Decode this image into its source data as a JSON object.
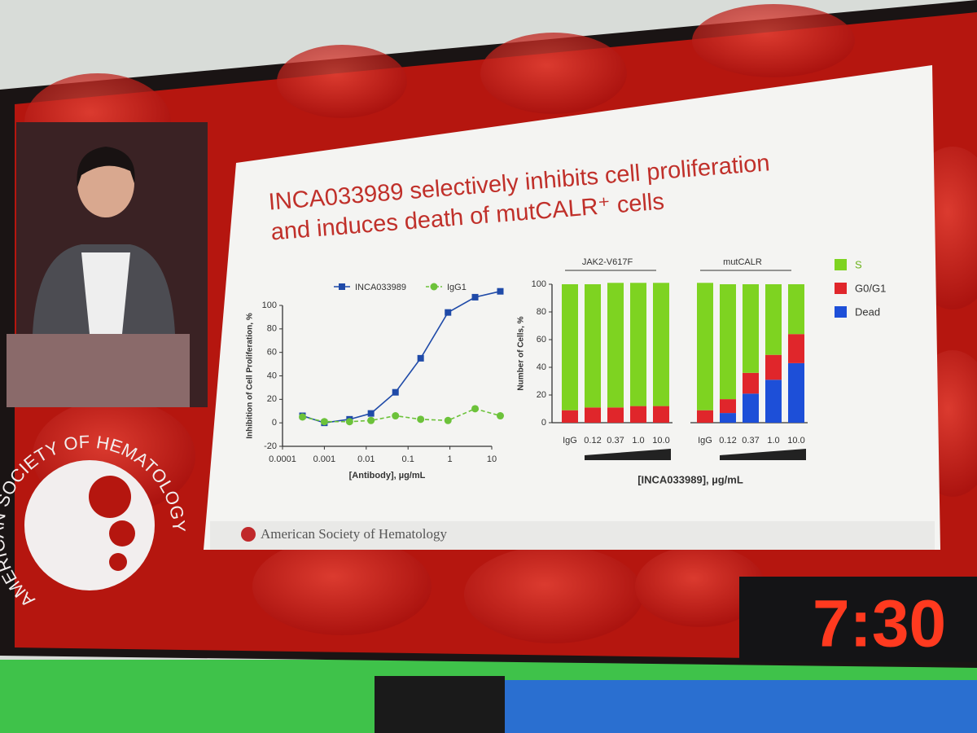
{
  "slide": {
    "title": [
      "INCA033989 selectively inhibits cell proliferation",
      "and induces death of mutCALR⁺ cells"
    ],
    "footer": "American Society of Hematology"
  },
  "logo": "AMERICAN SOCIETY OF HEMATOLOGY",
  "timer": "7:30",
  "chart_data": [
    {
      "type": "line",
      "xscale": "log",
      "legend": "top",
      "xlabel": "[Antibody], µg/mL",
      "ylabel": "Inhibition of Cell Proliferation, %",
      "x": [
        0.0003,
        0.001,
        0.004,
        0.013,
        0.05,
        0.2,
        0.9,
        4,
        16
      ],
      "series": [
        {
          "name": "INCA033989",
          "color": "#1f4aa8",
          "marker": "square",
          "line": "solid",
          "values": [
            6,
            0,
            3,
            8,
            26,
            55,
            94,
            107,
            112
          ]
        },
        {
          "name": "IgG1",
          "color": "#6cc23a",
          "marker": "circle",
          "line": "dashed",
          "values": [
            5,
            1,
            1,
            2,
            6,
            3,
            2,
            12,
            6
          ]
        }
      ],
      "xlim": [
        0.0001,
        10
      ],
      "ylim": [
        -20,
        100
      ],
      "xticks": [
        0.0001,
        0.001,
        0.01,
        0.1,
        1,
        10
      ],
      "yticks": [
        -20,
        0,
        20,
        40,
        60,
        80,
        100
      ]
    },
    {
      "type": "stacked-bar",
      "legend": "right",
      "groups": [
        "JAK2-V617F",
        "mutCALR"
      ],
      "categories": [
        "IgG",
        "0.12",
        "0.37",
        "1.0",
        "10.0",
        "IgG",
        "0.12",
        "0.37",
        "1.0",
        "10.0"
      ],
      "xlabel": "[INCA033989], µg/mL",
      "ylabel": "Number of Cells, %",
      "series": [
        {
          "name": "Dead",
          "color": "#1d4fd8",
          "values": [
            0,
            0,
            0,
            0,
            0,
            0,
            7,
            21,
            31,
            43
          ]
        },
        {
          "name": "G0/G1",
          "color": "#e0262b",
          "values": [
            9,
            11,
            11,
            12,
            12,
            9,
            10,
            15,
            18,
            21
          ]
        },
        {
          "name": "S",
          "color": "#7ed321",
          "values": [
            91,
            89,
            90,
            89,
            89,
            92,
            83,
            64,
            51,
            36
          ]
        }
      ],
      "ylim": [
        0,
        100
      ],
      "yticks": [
        0,
        20,
        40,
        60,
        80,
        100
      ]
    }
  ]
}
